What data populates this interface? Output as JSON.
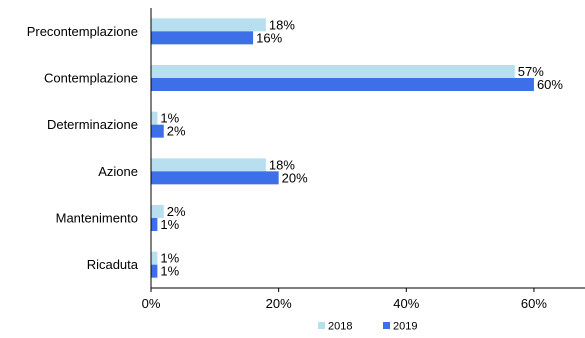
{
  "chart_data": {
    "type": "bar",
    "orientation": "horizontal",
    "title": "",
    "xlabel": "",
    "ylabel": "",
    "categories": [
      "Precontemplazione",
      "Contemplazione",
      "Determinazione",
      "Azione",
      "Mantenimento",
      "Ricaduta"
    ],
    "series": [
      {
        "name": "2018",
        "color": "#b8dfee",
        "values": [
          18,
          57,
          1,
          18,
          2,
          1
        ],
        "labels": [
          "18%",
          "57%",
          "1%",
          "18%",
          "2%",
          "1%"
        ]
      },
      {
        "name": "2019",
        "color": "#3d6fe8",
        "values": [
          16,
          60,
          2,
          20,
          1,
          1
        ],
        "labels": [
          "16%",
          "60%",
          "2%",
          "20%",
          "1%",
          "1%"
        ]
      }
    ],
    "xlim": [
      0,
      68
    ],
    "xticks": [
      0,
      20,
      40,
      60
    ],
    "xtick_labels": [
      "0%",
      "20%",
      "40%",
      "60%"
    ],
    "grid": false,
    "legend_position": "bottom"
  }
}
